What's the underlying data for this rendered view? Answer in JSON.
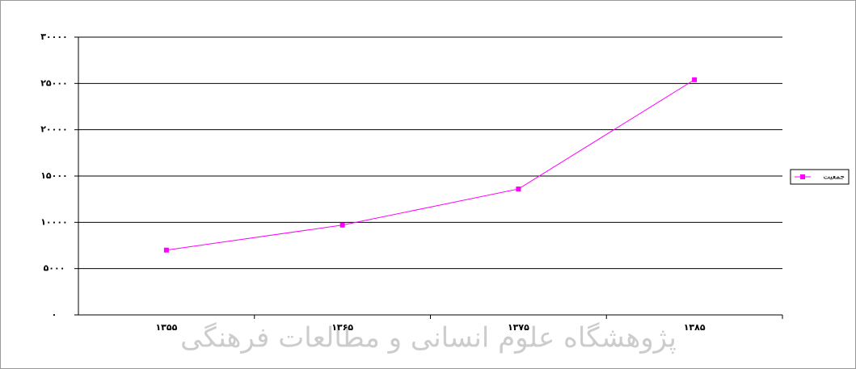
{
  "chart_data": {
    "type": "line",
    "categories": [
      "۱۳۵۵",
      "۱۳۶۵",
      "۱۳۷۵",
      "۱۳۸۵"
    ],
    "series": [
      {
        "name": "جمعیت",
        "color": "#ff00ff",
        "values": [
          7000,
          9700,
          13600,
          25400
        ]
      }
    ],
    "ylim": [
      0,
      30000
    ],
    "yticks": [
      {
        "value": 0,
        "label": "۰"
      },
      {
        "value": 5000,
        "label": "۵۰۰۰"
      },
      {
        "value": 10000,
        "label": "۱۰۰۰۰"
      },
      {
        "value": 15000,
        "label": "۱۵۰۰۰"
      },
      {
        "value": 20000,
        "label": "۲۰۰۰۰"
      },
      {
        "value": 25000,
        "label": "۲۵۰۰۰"
      },
      {
        "value": 30000,
        "label": "۳۰۰۰۰"
      }
    ],
    "grid": true,
    "legend": "right",
    "watermark": "پژوهشگاه علوم انسانی و مطالعات فرهنگی"
  }
}
